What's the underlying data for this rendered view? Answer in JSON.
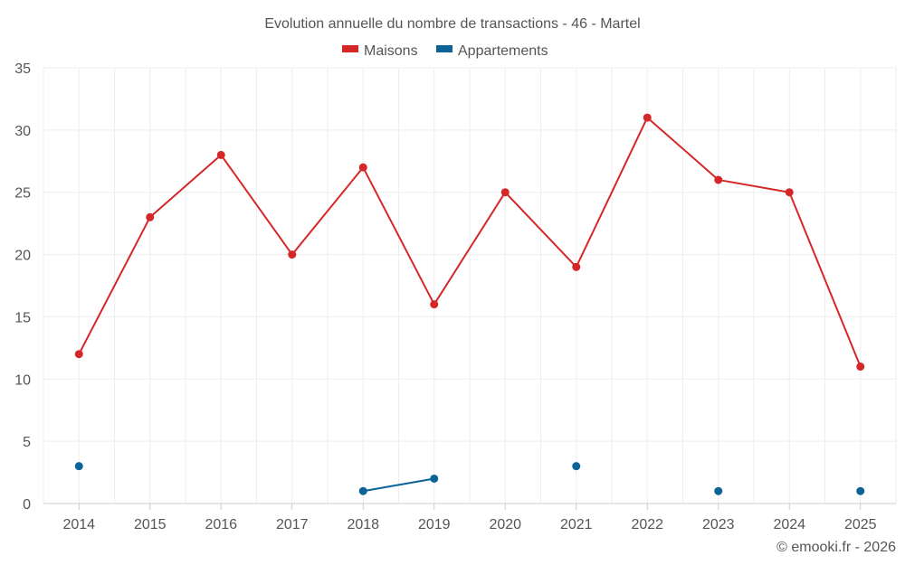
{
  "chart_data": {
    "type": "line",
    "title": "Evolution annuelle du nombre de transactions - 46 - Martel",
    "categories": [
      "2014",
      "2015",
      "2016",
      "2017",
      "2018",
      "2019",
      "2020",
      "2021",
      "2022",
      "2023",
      "2024",
      "2025"
    ],
    "ylim": [
      0,
      35
    ],
    "yticks": [
      0,
      5,
      10,
      15,
      20,
      25,
      30,
      35
    ],
    "grid": true,
    "legend_position": "top-center",
    "series": [
      {
        "name": "Maisons",
        "color": "#d62728",
        "values": [
          12,
          23,
          28,
          20,
          27,
          16,
          25,
          19,
          31,
          26,
          25,
          11
        ]
      },
      {
        "name": "Appartements",
        "color": "#0b6497",
        "values": [
          3,
          null,
          null,
          null,
          1,
          2,
          null,
          3,
          null,
          1,
          null,
          1
        ]
      }
    ]
  },
  "credit": "© emooki.fr - 2026"
}
